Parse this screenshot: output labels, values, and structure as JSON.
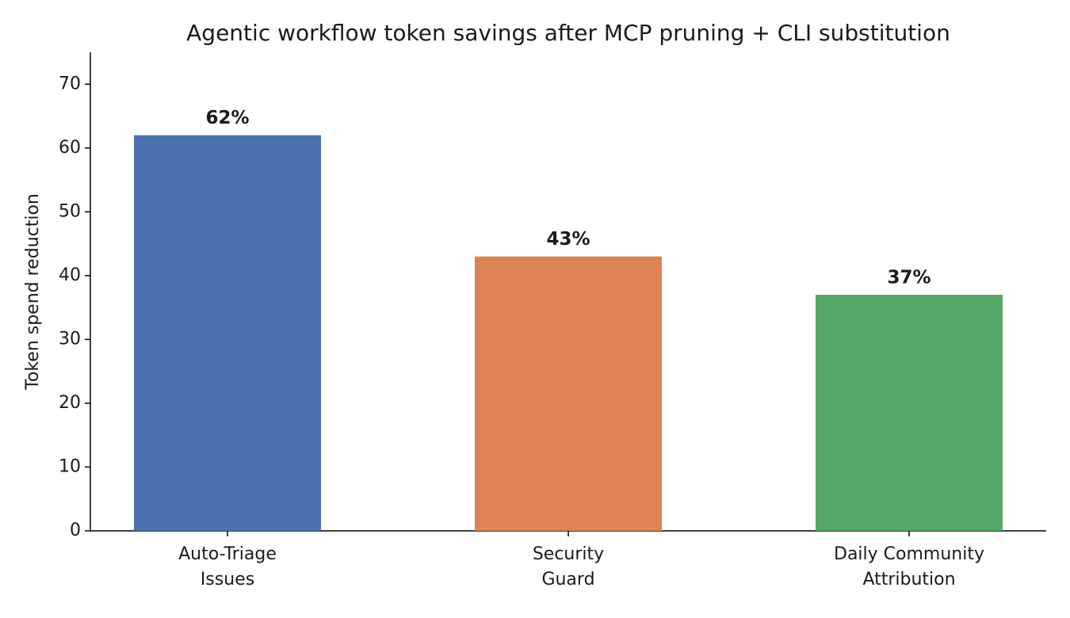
{
  "chart_data": {
    "type": "bar",
    "title": "Agentic workflow token savings after MCP pruning + CLI substitution",
    "y_label": "Token spend reduction",
    "categories": [
      [
        "Auto-Triage",
        "Issues"
      ],
      [
        "Security",
        "Guard"
      ],
      [
        "Daily Community",
        "Attribution"
      ]
    ],
    "values": [
      62,
      43,
      37
    ],
    "value_labels": [
      "62%",
      "43%",
      "37%"
    ],
    "colors": [
      "#4c72b0",
      "#dd8452",
      "#55a868"
    ],
    "ylim": [
      0,
      75
    ],
    "yticks": [
      0,
      10,
      20,
      30,
      40,
      50,
      60,
      70
    ],
    "grid": false
  }
}
